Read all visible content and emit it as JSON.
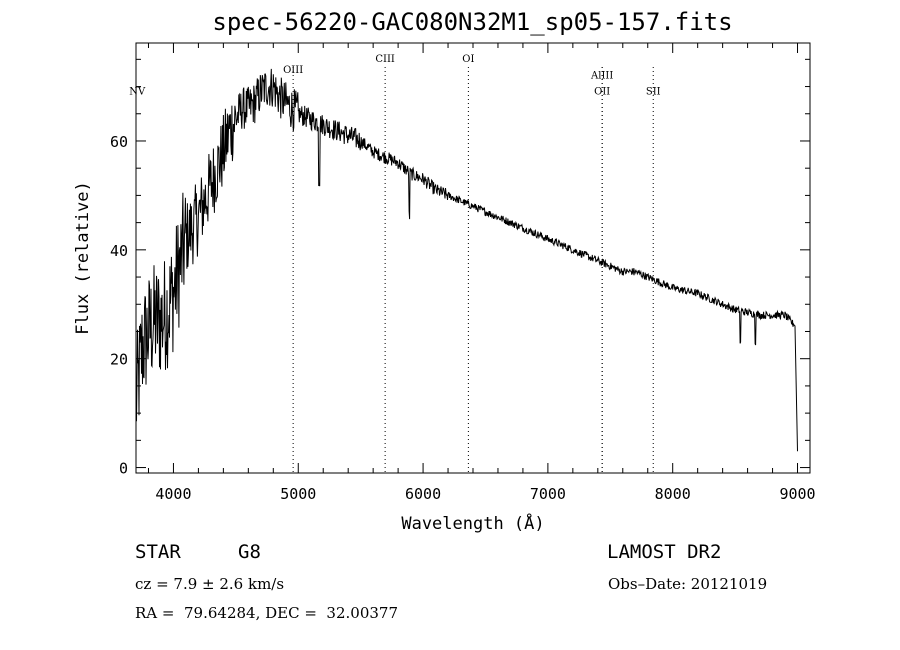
{
  "chart_data": {
    "type": "line",
    "title": "spec-56220-GAC080N32M1_sp05-157.fits",
    "xlabel": "Wavelength (Å)",
    "ylabel": "Flux (relative)",
    "xlim": [
      3700,
      9100
    ],
    "ylim": [
      -1,
      78
    ],
    "xticks": [
      4000,
      5000,
      6000,
      7000,
      8000,
      9000
    ],
    "yticks": [
      0,
      20,
      40,
      60
    ],
    "grid": false,
    "line_color": "#000000",
    "lines": [
      {
        "label": "NV",
        "x": 3710,
        "label_y": 68.5
      },
      {
        "label": "OIII",
        "x": 4959,
        "label_y": 72.5
      },
      {
        "label": "CIII",
        "x": 5696,
        "label_y": 74.5
      },
      {
        "label": "OI",
        "x": 6363,
        "label_y": 74.5
      },
      {
        "label": "AlIII",
        "x": 7435,
        "label_y": 71.5
      },
      {
        "label": "OII",
        "x": 7435,
        "label_y": 68.5
      },
      {
        "label": "SII",
        "x": 7844,
        "label_y": 68.5
      }
    ],
    "spectrum": {
      "x": [
        3700,
        3750,
        3800,
        3850,
        3900,
        3950,
        4000,
        4050,
        4100,
        4150,
        4200,
        4250,
        4300,
        4350,
        4400,
        4450,
        4500,
        4550,
        4600,
        4650,
        4700,
        4750,
        4800,
        4850,
        4900,
        4950,
        5000,
        5100,
        5200,
        5300,
        5400,
        5500,
        5600,
        5700,
        5800,
        5900,
        6000,
        6100,
        6200,
        6300,
        6400,
        6500,
        6600,
        6700,
        6800,
        6900,
        7000,
        7100,
        7200,
        7300,
        7400,
        7500,
        7600,
        7700,
        7800,
        7900,
        8000,
        8100,
        8200,
        8300,
        8400,
        8500,
        8600,
        8700,
        8800,
        8900,
        8980,
        9000
      ],
      "y": [
        12,
        22,
        25,
        27,
        27,
        29,
        32,
        37,
        42,
        44,
        46,
        49,
        52,
        55,
        58,
        62,
        64,
        66,
        66,
        67,
        69,
        70,
        70,
        68,
        67,
        66,
        65,
        64,
        63,
        62,
        61,
        60,
        58,
        57,
        56,
        54,
        53,
        51,
        50,
        49,
        48,
        47,
        46,
        45,
        44,
        43,
        42,
        41,
        40,
        39,
        38,
        37,
        36,
        36,
        35,
        34,
        33,
        32.5,
        32,
        31,
        30,
        29,
        28.5,
        28,
        28,
        28,
        26,
        3
      ]
    }
  },
  "info": {
    "class_label": "STAR",
    "subclass": "G8",
    "survey": "LAMOST DR2",
    "cz": "cz = 7.9 ± 2.6 km/s",
    "obs_date": "Obs–Date: 20121019",
    "coords": "RA =  79.64284, DEC =  32.00377"
  }
}
